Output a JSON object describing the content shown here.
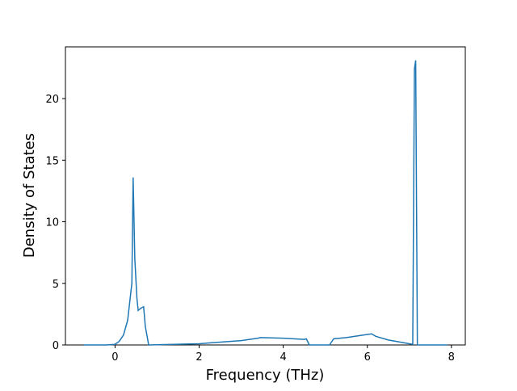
{
  "chart_data": {
    "type": "line",
    "xlabel": "Frequency (THz)",
    "ylabel": "Density of States",
    "x": [
      -0.75,
      -0.2,
      0,
      0.1,
      0.2,
      0.3,
      0.35,
      0.4,
      0.43,
      0.47,
      0.52,
      0.55,
      0.62,
      0.68,
      0.72,
      0.8,
      1,
      2,
      3,
      3.4,
      3.45,
      4,
      4.5,
      4.55,
      4.62,
      5.1,
      5.2,
      5.5,
      6,
      6.1,
      6.2,
      6.5,
      7,
      7.08,
      7.12,
      7.15,
      7.19,
      7.9
    ],
    "values": [
      0,
      0,
      0.05,
      0.3,
      0.8,
      2,
      3.5,
      5,
      13.6,
      7,
      3.8,
      2.8,
      3.0,
      3.1,
      1.5,
      0,
      0.02,
      0.1,
      0.35,
      0.55,
      0.6,
      0.55,
      0.45,
      0.5,
      0,
      0,
      0.5,
      0.6,
      0.85,
      0.9,
      0.7,
      0.4,
      0.1,
      0.05,
      22.4,
      23.1,
      0,
      0
    ],
    "color": "#1f77b4",
    "xlim": [
      -1.18,
      8.33
    ],
    "xticks": [
      0,
      2,
      4,
      6,
      8
    ],
    "ylim": [
      0,
      24.2
    ],
    "yticks": [
      0,
      5,
      10,
      15,
      20
    ]
  }
}
